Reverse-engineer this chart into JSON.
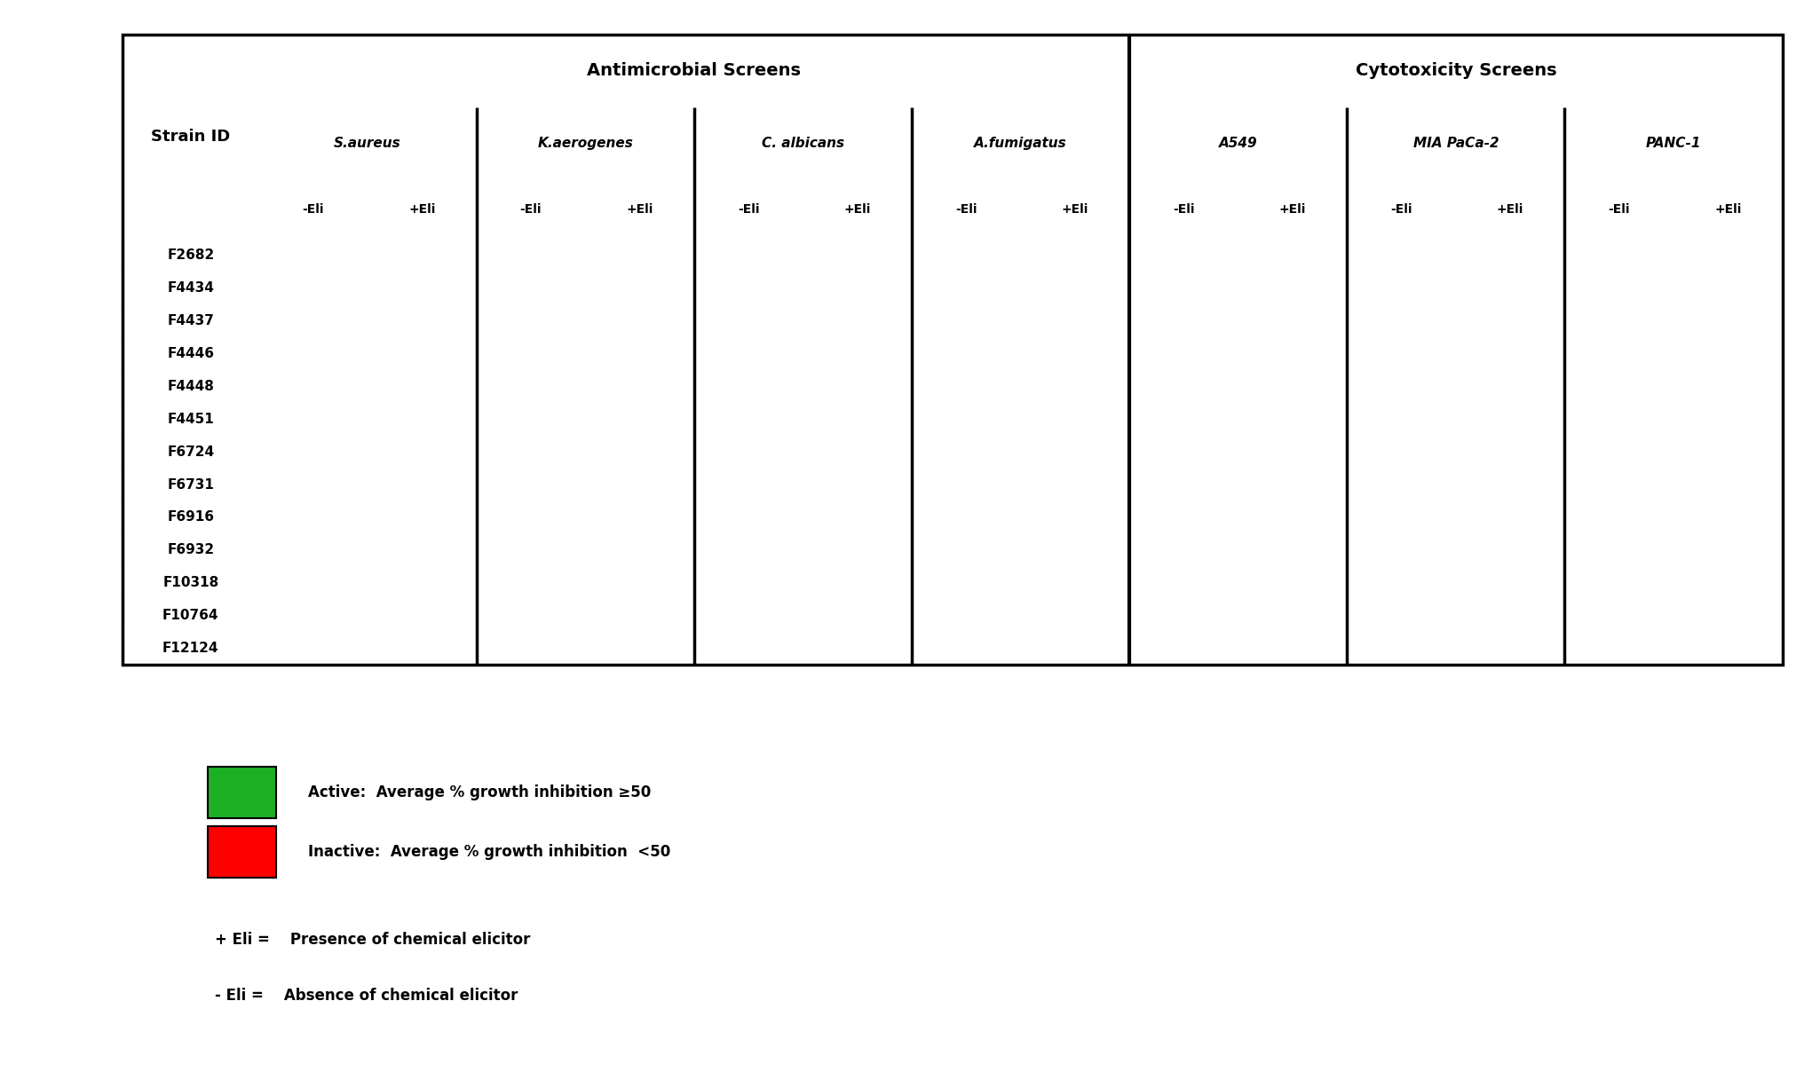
{
  "strains": [
    "F2682",
    "F4434",
    "F4437",
    "F4446",
    "F4448",
    "F4451",
    "F6724",
    "F6731",
    "F6916",
    "F6932",
    "F10318",
    "F10764",
    "F12124"
  ],
  "col_headers_level2": [
    "-Eli",
    "+Eli",
    "-Eli",
    "+Eli",
    "-Eli",
    "+Eli",
    "-Eli",
    "+Eli",
    "-Eli",
    "+Eli",
    "-Eli",
    "+Eli",
    "-Eli",
    "+Eli"
  ],
  "col_headers_level1": [
    "S.aureus",
    "K.aerogenes",
    "C. albicans",
    "A.fumigatus",
    "A549",
    "MIA PaCa-2",
    "PANC-1"
  ],
  "color_active": "#1db025",
  "color_inactive": "#ff0000",
  "background_color": "#ffffff",
  "cell_data": [
    [
      "R",
      "R",
      "R",
      "R",
      "R",
      "R",
      "R",
      "R",
      "G",
      "R",
      "G",
      "G",
      "G",
      "G"
    ],
    [
      "R",
      "G",
      "R",
      "R",
      "R",
      "R",
      "G",
      "R",
      "G",
      "R",
      "G",
      "G",
      "G",
      "G"
    ],
    [
      "R",
      "G",
      "R",
      "R",
      "R",
      "R",
      "R",
      "R",
      "R",
      "G",
      "R",
      "G",
      "R",
      "G"
    ],
    [
      "R",
      "R",
      "R",
      "R",
      "R",
      "R",
      "R",
      "R",
      "R",
      "R",
      "R",
      "G",
      "R",
      "G"
    ],
    [
      "R",
      "G",
      "R",
      "R",
      "R",
      "G",
      "R",
      "R",
      "G",
      "R",
      "R",
      "R",
      "R",
      "R"
    ],
    [
      "G",
      "R",
      "R",
      "R",
      "R",
      "R",
      "R",
      "G",
      "R",
      "R",
      "R",
      "G",
      "R",
      "R"
    ],
    [
      "R",
      "R",
      "R",
      "R",
      "R",
      "G",
      "R",
      "R",
      "G",
      "R",
      "R",
      "G",
      "R",
      "R"
    ],
    [
      "R",
      "R",
      "R",
      "R",
      "R",
      "R",
      "R",
      "R",
      "R",
      "G",
      "R",
      "G",
      "G",
      "G"
    ],
    [
      "G",
      "G",
      "R",
      "R",
      "R",
      "R",
      "R",
      "R",
      "R",
      "R",
      "R",
      "R",
      "R",
      "R"
    ],
    [
      "R",
      "G",
      "R",
      "R",
      "R",
      "R",
      "R",
      "R",
      "R",
      "G",
      "R",
      "G",
      "G",
      "G"
    ],
    [
      "R",
      "G",
      "R",
      "R",
      "G",
      "R",
      "R",
      "R",
      "G",
      "R",
      "R",
      "G",
      "R",
      "G"
    ],
    [
      "R",
      "R",
      "R",
      "R",
      "R",
      "R",
      "R",
      "R",
      "R",
      "R",
      "R",
      "G",
      "R",
      "R"
    ],
    [
      "R",
      "R",
      "R",
      "R",
      "R",
      "R",
      "R",
      "R",
      "R",
      "R",
      "G",
      "G",
      "G",
      "G"
    ]
  ],
  "title_antimicrobial": "Antimicrobial Screens",
  "title_cytotoxicity": "Cytotoxicity Screens",
  "legend_active_text": "Active:  Average % growth inhibition ≥50",
  "legend_inactive_text": "Inactive:  Average % growth inhibition  <50",
  "legend_eli_plus": "+ Eli =    Presence of chemical elicitor",
  "legend_eli_minus": "- Eli =    Absence of chemical elicitor"
}
